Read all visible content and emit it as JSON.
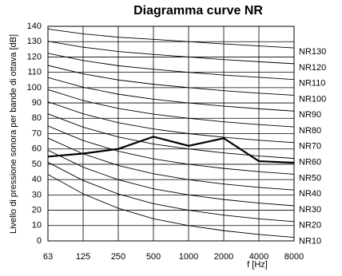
{
  "chart_data": {
    "type": "line",
    "title": "Diagramma curve NR",
    "x_label": "f [Hz]",
    "y_label": "Livello di pressione sonora per bande di ottava [dB]",
    "categories": [
      "63",
      "125",
      "250",
      "500",
      "1000",
      "2000",
      "4000",
      "8000"
    ],
    "ylim": [
      0,
      140
    ],
    "yticks": [
      0,
      10,
      20,
      30,
      40,
      50,
      60,
      70,
      80,
      90,
      100,
      110,
      120,
      130,
      140
    ],
    "grid": true,
    "series": [
      {
        "name": "NR10",
        "color": "#000000",
        "values": [
          43.4,
          30.7,
          21.3,
          14.5,
          10,
          6.7,
          4.2,
          2.3
        ]
      },
      {
        "name": "NR20",
        "color": "#000000",
        "values": [
          51.3,
          39.4,
          30.6,
          24.3,
          20,
          16.8,
          14.4,
          12.6
        ]
      },
      {
        "name": "NR30",
        "color": "#000000",
        "values": [
          59.2,
          48.1,
          39.9,
          34.0,
          30,
          27.0,
          24.7,
          22.9
        ]
      },
      {
        "name": "NR40",
        "color": "#000000",
        "values": [
          67.1,
          56.8,
          49.2,
          43.8,
          40,
          37.1,
          34.9,
          33.2
        ]
      },
      {
        "name": "NR50",
        "color": "#000000",
        "values": [
          75.0,
          65.5,
          58.5,
          53.5,
          50,
          47.3,
          45.2,
          43.5
        ]
      },
      {
        "name": "NR60",
        "color": "#000000",
        "values": [
          82.9,
          74.2,
          67.8,
          63.2,
          60,
          57.4,
          55.4,
          53.8
        ]
      },
      {
        "name": "NR70",
        "color": "#000000",
        "values": [
          90.8,
          82.9,
          77.1,
          73.0,
          70,
          67.6,
          65.7,
          64.1
        ]
      },
      {
        "name": "NR80",
        "color": "#000000",
        "values": [
          98.7,
          91.6,
          86.4,
          82.7,
          80,
          77.7,
          75.9,
          74.4
        ]
      },
      {
        "name": "NR90",
        "color": "#000000",
        "values": [
          106.6,
          100.3,
          95.7,
          92.5,
          90,
          87.9,
          86.2,
          84.7
        ]
      },
      {
        "name": "NR100",
        "color": "#000000",
        "values": [
          114.5,
          109.0,
          105.0,
          102.2,
          100,
          98.0,
          96.4,
          95.0
        ]
      },
      {
        "name": "NR110",
        "color": "#000000",
        "values": [
          122.4,
          117.7,
          114.3,
          112.0,
          110,
          108.2,
          106.7,
          105.3
        ]
      },
      {
        "name": "NR120",
        "color": "#000000",
        "values": [
          130.3,
          126.4,
          123.6,
          121.7,
          120,
          118.3,
          116.9,
          115.6
        ]
      },
      {
        "name": "NR130",
        "color": "#000000",
        "values": [
          138.2,
          135.1,
          132.9,
          131.5,
          130,
          128.5,
          127.2,
          125.9
        ]
      },
      {
        "color": "#000000",
        "values": [
          55,
          57,
          60,
          68,
          62,
          67,
          52,
          51
        ]
      }
    ]
  }
}
